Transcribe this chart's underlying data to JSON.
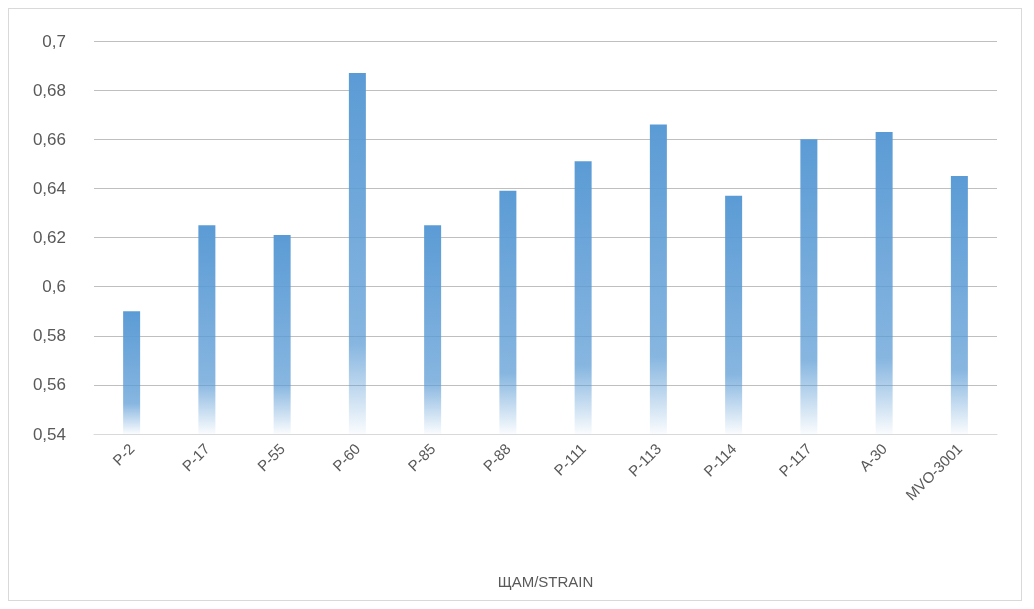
{
  "chart_data": {
    "type": "bar",
    "xlabel": "ЩАМ/STRAIN",
    "categories": [
      "P-2",
      "P-17",
      "P-55",
      "P-60",
      "P-85",
      "P-88",
      "P-111",
      "P-113",
      "P-114",
      "P-117",
      "A-30",
      "MVO-3001"
    ],
    "values": [
      0.59,
      0.625,
      0.621,
      0.687,
      0.625,
      0.639,
      0.651,
      0.666,
      0.637,
      0.66,
      0.663,
      0.645
    ],
    "color": "#5b9bd5",
    "ylim": [
      0.54,
      0.7
    ],
    "yticks": [
      {
        "value": 0.54,
        "label": "0,54"
      },
      {
        "value": 0.56,
        "label": "0,56"
      },
      {
        "value": 0.58,
        "label": "0,58"
      },
      {
        "value": 0.6,
        "label": "0,6"
      },
      {
        "value": 0.62,
        "label": "0,62"
      },
      {
        "value": 0.64,
        "label": "0,64"
      },
      {
        "value": 0.66,
        "label": "0,66"
      },
      {
        "value": 0.68,
        "label": "0,68"
      },
      {
        "value": 0.7,
        "label": "0,7"
      }
    ],
    "grid": "y"
  }
}
